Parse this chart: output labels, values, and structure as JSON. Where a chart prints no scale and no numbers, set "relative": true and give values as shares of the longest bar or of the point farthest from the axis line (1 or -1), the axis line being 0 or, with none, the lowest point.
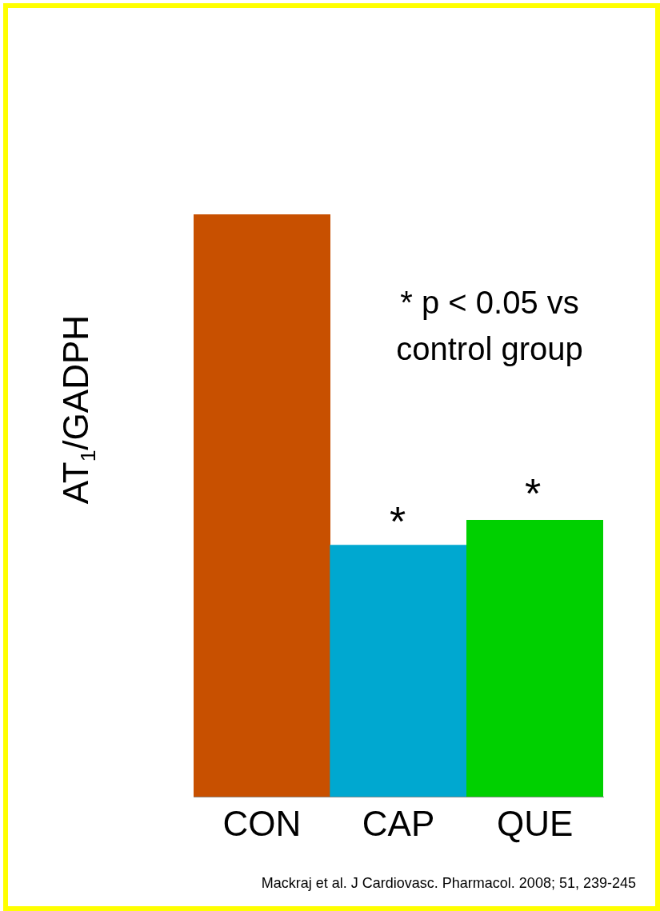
{
  "chart_data": {
    "type": "bar",
    "relative": true,
    "ylabel": "AT$_{1}$/GADPH",
    "categories": [
      "CON",
      "CAP",
      "QUE"
    ],
    "values": [
      1,
      0.432,
      0.475
    ],
    "colors": [
      "#c85000",
      "#00a8d0",
      "#00d000"
    ],
    "annotations": [
      "*",
      "*",
      "* p < 0.05 vs control group",
      "Mackraj et al. J Cardiovasc. Pharmacol. 2008; 51, 239-245"
    ],
    "grid": false,
    "legend": false
  }
}
